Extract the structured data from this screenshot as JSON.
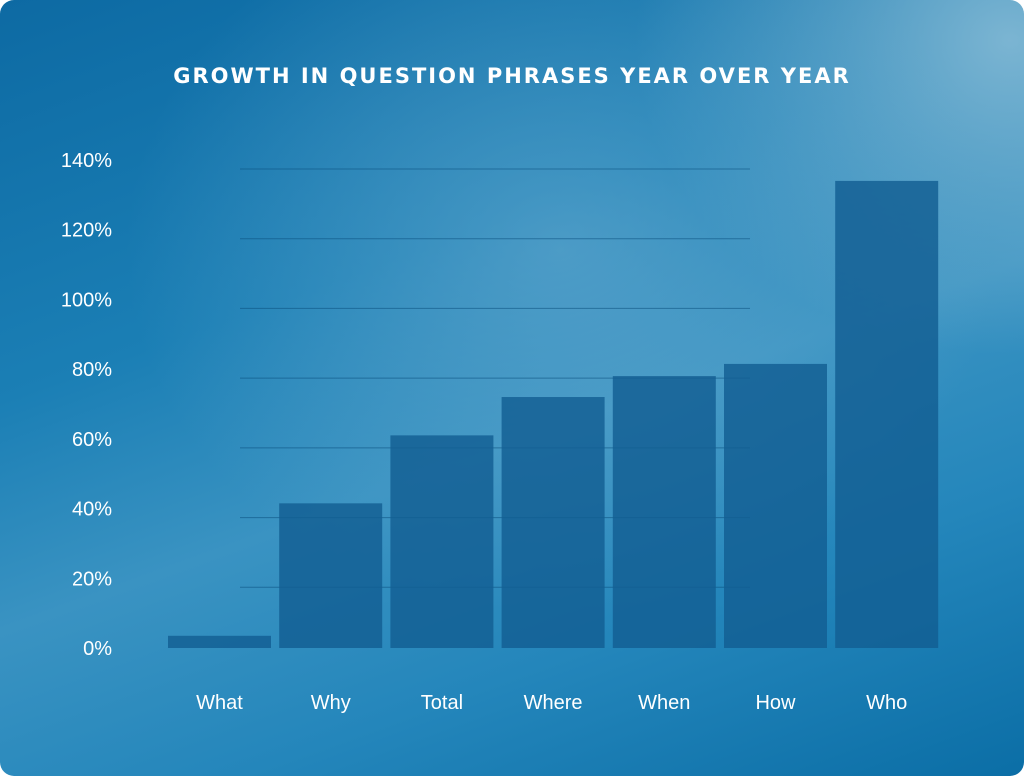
{
  "chart_data": {
    "type": "bar",
    "title": "GROWTH IN QUESTION PHRASES YEAR OVER YEAR",
    "xlabel": "",
    "ylabel": "",
    "categories": [
      "What",
      "Why",
      "Total",
      "Where",
      "When",
      "How",
      "Who"
    ],
    "values": [
      3.5,
      41.5,
      61,
      72,
      78,
      81.5,
      134
    ],
    "ylim": [
      0,
      140
    ],
    "yticks": [
      0,
      20,
      40,
      60,
      80,
      100,
      120,
      140
    ],
    "ytick_labels": [
      "0%",
      "20%",
      "40%",
      "60%",
      "80%",
      "100%",
      "120%",
      "140%"
    ],
    "grid": true,
    "legend": "none",
    "colors": {
      "bar": "#125e93",
      "gridline": "#0a4f7e",
      "text": "#ffffff"
    }
  }
}
